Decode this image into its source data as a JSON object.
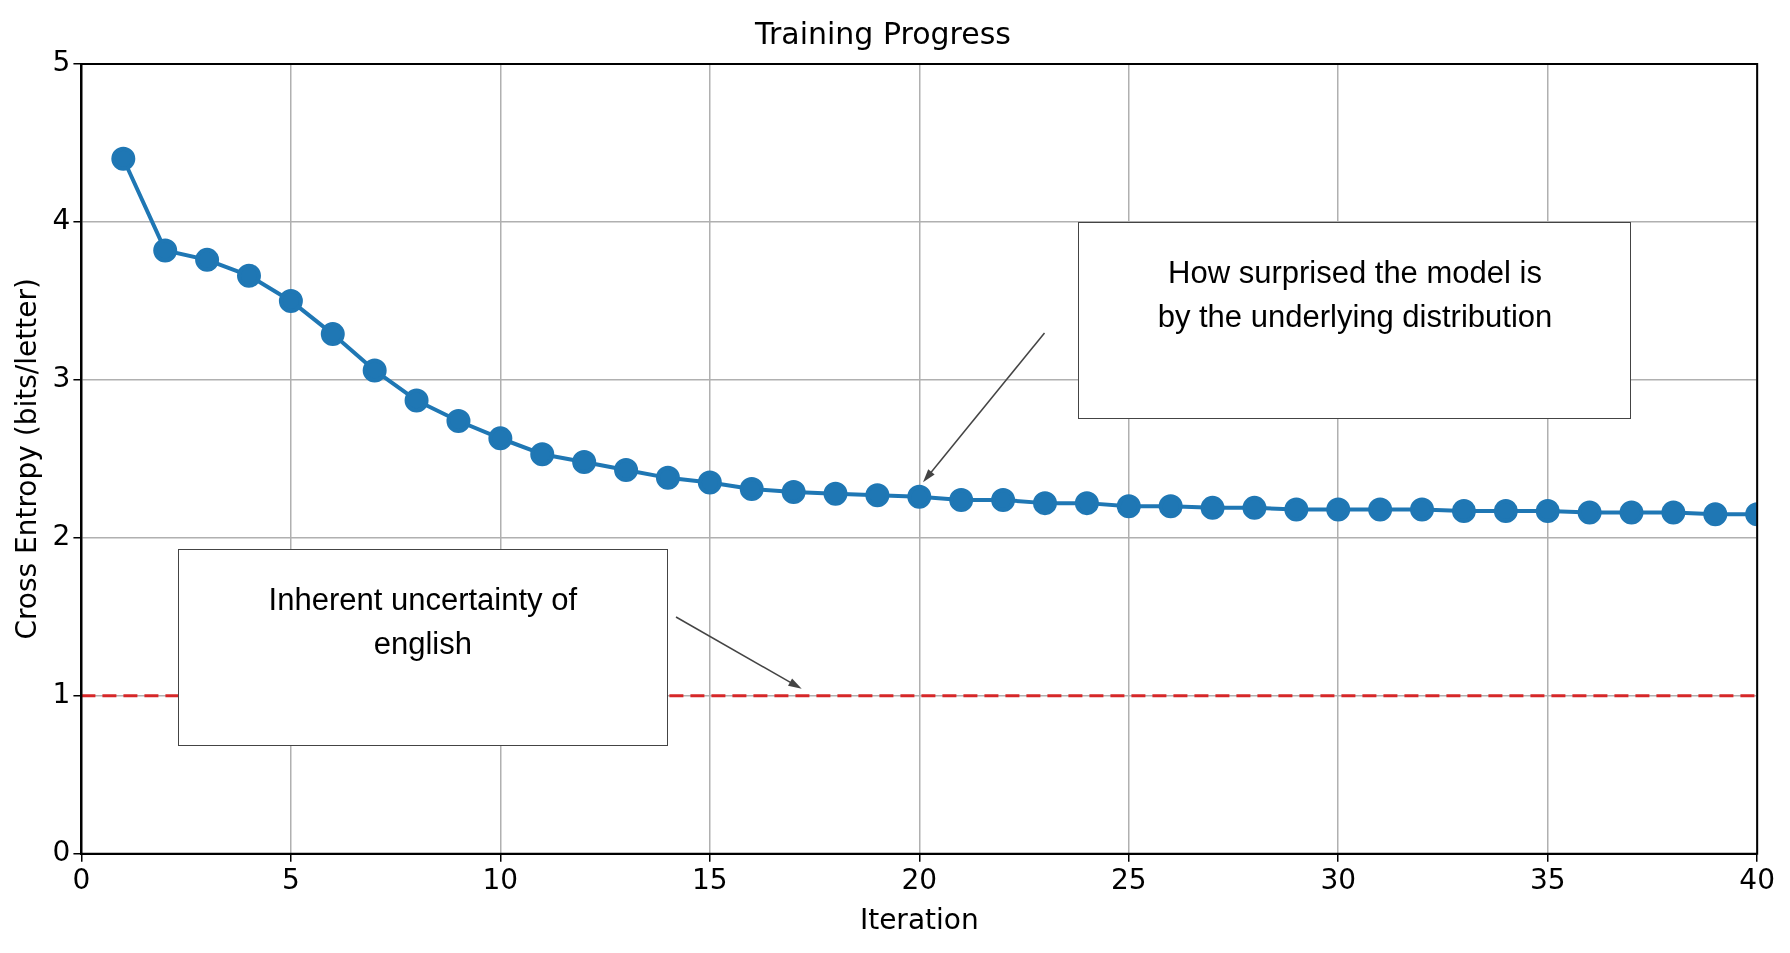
{
  "chart_data": {
    "type": "line",
    "title": "Training Progress",
    "xlabel": "Iteration",
    "ylabel": "Cross Entropy (bits/letter)",
    "x": [
      1,
      2,
      3,
      4,
      5,
      6,
      7,
      8,
      9,
      10,
      11,
      12,
      13,
      14,
      15,
      16,
      17,
      18,
      19,
      20,
      21,
      22,
      23,
      24,
      25,
      26,
      27,
      28,
      29,
      30,
      31,
      32,
      33,
      34,
      35,
      36,
      37,
      38,
      39,
      40
    ],
    "series": [
      {
        "color": "#1f77b4",
        "values": [
          4.4,
          3.82,
          3.76,
          3.66,
          3.5,
          3.29,
          3.06,
          2.87,
          2.74,
          2.63,
          2.53,
          2.48,
          2.43,
          2.38,
          2.35,
          2.31,
          2.29,
          2.28,
          2.27,
          2.26,
          2.24,
          2.24,
          2.22,
          2.22,
          2.2,
          2.2,
          2.19,
          2.19,
          2.18,
          2.18,
          2.18,
          2.18,
          2.17,
          2.17,
          2.17,
          2.16,
          2.16,
          2.16,
          2.15,
          2.15
        ]
      }
    ],
    "xlim": [
      0,
      40
    ],
    "xticks": [
      0,
      5,
      10,
      15,
      20,
      25,
      30,
      35,
      40
    ],
    "ylim": [
      0,
      5
    ],
    "yticks": [
      0,
      1,
      2,
      3,
      4,
      5
    ],
    "grid": true,
    "marker": "circle",
    "line_style": "solid",
    "ref_lines": [
      {
        "axis": "y",
        "value": 1,
        "color": "#d62728",
        "line_style": "dashed"
      }
    ],
    "annotations": [
      "How surprised the model is by the underlying distribution",
      "Inherent uncertainty of english"
    ]
  }
}
